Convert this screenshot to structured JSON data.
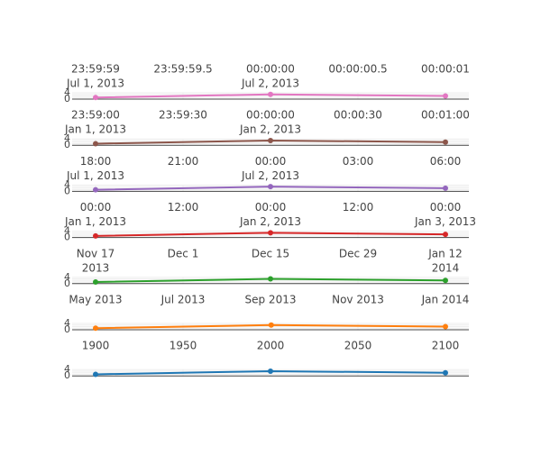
{
  "chart_data": [
    {
      "type": "line",
      "color": "#e377c2",
      "x_tick_labels": [
        [
          "23:59:59",
          "Jul 1, 2013"
        ],
        [
          "23:59:59.5"
        ],
        [
          "00:00:00",
          "Jul 2, 2013"
        ],
        [
          "00:00:00.5"
        ],
        [
          "00:00:01"
        ]
      ],
      "x": [
        "2013-07-01 23:59:59",
        "2013-07-02 00:00:00",
        "2013-07-02 00:00:01"
      ],
      "y": [
        1,
        3,
        2
      ],
      "y_tick_labels": [
        "0",
        "4"
      ],
      "ylim": [
        0,
        4
      ],
      "grid": true
    },
    {
      "type": "line",
      "color": "#8c564b",
      "x_tick_labels": [
        [
          "23:59:00",
          "Jan 1, 2013"
        ],
        [
          "23:59:30"
        ],
        [
          "00:00:00",
          "Jan 2, 2013"
        ],
        [
          "00:00:30"
        ],
        [
          "00:01:00"
        ]
      ],
      "x": [
        "2013-01-01 23:59:00",
        "2013-01-02 00:00:00",
        "2013-01-02 00:01:00"
      ],
      "y": [
        1,
        3,
        2
      ],
      "y_tick_labels": [
        "0",
        "4"
      ],
      "ylim": [
        0,
        4
      ],
      "grid": true
    },
    {
      "type": "line",
      "color": "#9467bd",
      "x_tick_labels": [
        [
          "18:00",
          "Jul 1, 2013"
        ],
        [
          "21:00"
        ],
        [
          "00:00",
          "Jul 2, 2013"
        ],
        [
          "03:00"
        ],
        [
          "06:00"
        ]
      ],
      "x": [
        "2013-07-01 18:00",
        "2013-07-02 00:00",
        "2013-07-02 06:00"
      ],
      "y": [
        1,
        3,
        2
      ],
      "y_tick_labels": [
        "0",
        "4"
      ],
      "ylim": [
        0,
        4
      ],
      "grid": true
    },
    {
      "type": "line",
      "color": "#d62728",
      "x_tick_labels": [
        [
          "00:00",
          "Jan 1, 2013"
        ],
        [
          "12:00"
        ],
        [
          "00:00",
          "Jan 2, 2013"
        ],
        [
          "12:00"
        ],
        [
          "00:00",
          "Jan 3, 2013"
        ]
      ],
      "x": [
        "2013-01-01 00:00",
        "2013-01-02 00:00",
        "2013-01-03 00:00"
      ],
      "y": [
        1,
        3,
        2
      ],
      "y_tick_labels": [
        "0",
        "4"
      ],
      "ylim": [
        0,
        4
      ],
      "grid": true
    },
    {
      "type": "line",
      "color": "#2ca02c",
      "x_tick_labels": [
        [
          "Nov 17",
          "2013"
        ],
        [
          "Dec 1"
        ],
        [
          "Dec 15"
        ],
        [
          "Dec 29"
        ],
        [
          "Jan 12",
          "2014"
        ]
      ],
      "x": [
        "2013-11-17",
        "2013-12-15",
        "2014-01-12"
      ],
      "y": [
        1,
        3,
        2
      ],
      "y_tick_labels": [
        "0",
        "4"
      ],
      "ylim": [
        0,
        4
      ],
      "grid": true
    },
    {
      "type": "line",
      "color": "#ff7f0e",
      "x_tick_labels": [
        [
          "May 2013"
        ],
        [
          "Jul 2013"
        ],
        [
          "Sep 2013"
        ],
        [
          "Nov 2013"
        ],
        [
          "Jan 2014"
        ]
      ],
      "x": [
        "2013-05-01",
        "2013-09-01",
        "2014-01-01"
      ],
      "y": [
        1,
        3,
        2
      ],
      "y_tick_labels": [
        "0",
        "4"
      ],
      "ylim": [
        0,
        4
      ],
      "grid": true
    },
    {
      "type": "line",
      "color": "#1f77b4",
      "x_tick_labels": [
        [
          "1900"
        ],
        [
          "1950"
        ],
        [
          "2000"
        ],
        [
          "2050"
        ],
        [
          "2100"
        ]
      ],
      "x": [
        1900,
        2000,
        2100
      ],
      "y": [
        1,
        3,
        2
      ],
      "y_tick_labels": [
        "0",
        "4"
      ],
      "ylim": [
        0,
        4
      ],
      "grid": true
    }
  ]
}
